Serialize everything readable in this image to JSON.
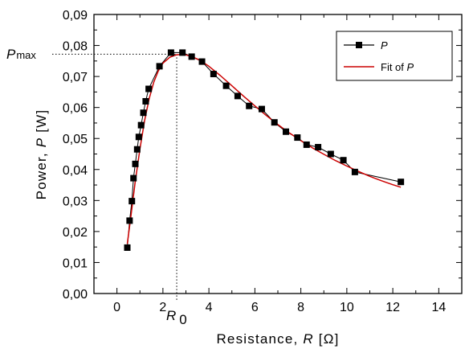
{
  "chart_data": {
    "type": "scatter",
    "xlabel": {
      "prefix": "Resistance, ",
      "var": "R",
      "unit": " [Ω]"
    },
    "ylabel": {
      "prefix": "Power, ",
      "var": "P",
      "unit": " [W]"
    },
    "xlim": [
      -1,
      15
    ],
    "ylim": [
      0,
      0.09
    ],
    "xticks": [
      0,
      2,
      4,
      6,
      8,
      10,
      12,
      14
    ],
    "yticks": [
      0,
      0.01,
      0.02,
      0.03,
      0.04,
      0.05,
      0.06,
      0.07,
      0.08,
      0.09
    ],
    "xtick_labels": [
      "0",
      "2",
      "4",
      "6",
      "8",
      "10",
      "12",
      "14"
    ],
    "ytick_labels": [
      "0,00",
      "0,01",
      "0,02",
      "0,03",
      "0,04",
      "0,05",
      "0,06",
      "0,07",
      "0,08",
      "0,09"
    ],
    "grid": false,
    "legend_position": "top-right",
    "series": [
      {
        "name": "P",
        "style": "line-square-markers",
        "color": "#000000",
        "x": [
          0.45,
          0.55,
          0.65,
          0.72,
          0.8,
          0.88,
          0.95,
          1.05,
          1.15,
          1.25,
          1.38,
          1.85,
          2.35,
          2.85,
          3.25,
          3.7,
          4.2,
          4.75,
          5.25,
          5.75,
          6.3,
          6.85,
          7.35,
          7.85,
          8.25,
          8.75,
          9.3,
          9.85,
          10.35,
          12.35
        ],
        "y": [
          0.0148,
          0.0235,
          0.0298,
          0.0372,
          0.0418,
          0.0465,
          0.0505,
          0.0543,
          0.0583,
          0.062,
          0.066,
          0.0733,
          0.0777,
          0.0777,
          0.0764,
          0.0748,
          0.0708,
          0.067,
          0.0637,
          0.0605,
          0.0595,
          0.0552,
          0.0522,
          0.0503,
          0.048,
          0.0472,
          0.045,
          0.043,
          0.0392,
          0.036
        ]
      },
      {
        "name": "Fit of P",
        "style": "line",
        "color": "#cc0000",
        "x": [
          0.45,
          0.6,
          0.8,
          1.0,
          1.2,
          1.4,
          1.6,
          1.8,
          2.0,
          2.3,
          2.6,
          2.9,
          3.2,
          3.6,
          4.0,
          4.5,
          5.0,
          5.5,
          6.0,
          6.5,
          7.0,
          7.5,
          8.0,
          8.5,
          9.0,
          9.5,
          10.0,
          10.5,
          11.0,
          11.5,
          12.0,
          12.35
        ],
        "y": [
          0.016,
          0.0245,
          0.0363,
          0.0467,
          0.0557,
          0.0628,
          0.0681,
          0.0718,
          0.0743,
          0.0762,
          0.077,
          0.0771,
          0.0766,
          0.0753,
          0.0733,
          0.0703,
          0.067,
          0.0637,
          0.0605,
          0.0574,
          0.0545,
          0.0518,
          0.0493,
          0.047,
          0.0449,
          0.0429,
          0.0411,
          0.0394,
          0.0378,
          0.0364,
          0.0351,
          0.0343
        ]
      }
    ],
    "annotations": {
      "pmax": {
        "label_main": "P",
        "label_sub": "max",
        "value": 0.0772
      },
      "r0": {
        "label_main": "R",
        "label_sub": "0",
        "value": 2.6
      }
    },
    "legend": [
      {
        "label_prefix": "",
        "label_var": "P",
        "series": 0
      },
      {
        "label_prefix": "Fit of ",
        "label_var": "P",
        "series": 1
      }
    ]
  }
}
